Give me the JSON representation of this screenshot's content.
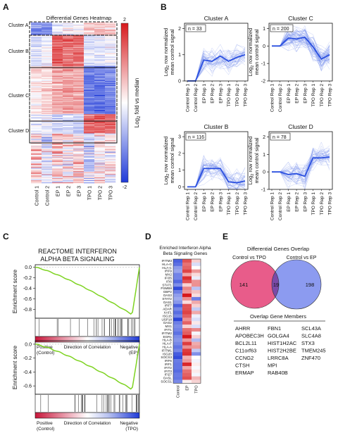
{
  "panels": {
    "A": "A",
    "B": "B",
    "C": "C",
    "D": "D",
    "E": "E"
  },
  "panel_a": {
    "title": "Differential Genes Heatmap",
    "clusters": [
      "Cluster A",
      "Cluster B",
      "Cluster C",
      "Cluster D"
    ],
    "samples": [
      "Control 1",
      "Control 2",
      "EP 1",
      "EP 2",
      "EP 3",
      "TPO 1",
      "TPO 2",
      "TPO 3"
    ],
    "colorbar": {
      "label": "Log",
      "label_sub": "2",
      "label_rest": " fold vs median",
      "max": "2",
      "min": "-2"
    }
  },
  "panel_b": {
    "ylabel_pre": "Log",
    "ylabel_sub": "2",
    "ylabel_post": " row normalized",
    "ylabel_line2": "mean control signal",
    "x_labels": [
      "Control Rep 1",
      "Control Rep 2",
      "EP Rep 1",
      "EP Rep 2",
      "EP Rep 3",
      "TPO Rep 1",
      "TPO Rep 2",
      "TPO Rep 3"
    ],
    "subplots": [
      {
        "title": "Cluster A",
        "n": "n = 33",
        "yticks": [
          "0",
          "1",
          "2"
        ],
        "ymin": 0,
        "ymax": 2.2,
        "mean": [
          0.0,
          0.0,
          0.8,
          0.75,
          0.95,
          0.75,
          0.9,
          1.0
        ]
      },
      {
        "title": "Cluster C",
        "n": "n = 200",
        "yticks": [
          "-2",
          "-1",
          "0",
          "1"
        ],
        "ymin": -2,
        "ymax": 1.3,
        "mean": [
          0.0,
          0.0,
          0.45,
          0.4,
          0.5,
          -0.05,
          -0.75,
          -0.5
        ]
      },
      {
        "title": "Cluster B",
        "n": "n = 116",
        "yticks": [
          "0",
          "1",
          "2",
          "3"
        ],
        "ymin": -0.15,
        "ymax": 3.3,
        "mean": [
          0.0,
          0.0,
          1.1,
          1.1,
          1.1,
          0.3,
          0.25,
          0.35
        ]
      },
      {
        "title": "Cluster D",
        "n": "n = 78",
        "yticks": [
          "-1",
          "0",
          "1",
          "2"
        ],
        "ymin": -1,
        "ymax": 2.3,
        "mean": [
          0.0,
          0.0,
          -0.15,
          -0.1,
          -0.25,
          0.8,
          0.8,
          0.85
        ]
      }
    ]
  },
  "panel_c": {
    "title_line1": "REACTOME INTERFERON",
    "title_line2": "ALPHA BETA SIGNALING",
    "ylabel": "Enrichment score",
    "top": {
      "yticks": [
        "0.0",
        "-0.2",
        "-0.4",
        "-0.6",
        "-0.8"
      ],
      "min_es": -0.9,
      "left": "Positive",
      "left_sub": "(Control)",
      "middle": "Direction of Correlation",
      "right": "Negative",
      "right_sub": "(EP)"
    },
    "bottom": {
      "yticks": [
        "0.0",
        "-0.2",
        "-0.4",
        "-0.6"
      ],
      "min_es": -0.65,
      "left": "Positive",
      "left_sub": "(Control)",
      "middle": "Direction of Correlation",
      "right": "Negative",
      "right_sub": "(TPO)"
    }
  },
  "panel_d": {
    "title_line1": "Enriched Interferon Alpha",
    "title_line2": "Beta Signaling Genes",
    "genes": [
      "IFITM3",
      "HLA-G",
      "HLA-C",
      "IRF9",
      "MX2",
      "IFI35",
      "IFI6",
      "STAT1",
      "PSMB8",
      "GBP2",
      "OAS3",
      "STAT2",
      "OAS1",
      "IRF7",
      "ADAR",
      "XAF1",
      "ISG15",
      "USP18",
      "OAS2",
      "MX1",
      "IFIT1",
      "IFITM2",
      "EGR1",
      "HLA-B",
      "HLA-F",
      "HLA-A",
      "IFITM1",
      "ISG20",
      "SOCS3",
      "IRF6",
      "IRF1",
      "IFIT2",
      "IFIT3",
      "IFI27",
      "OASL",
      "SOCS1"
    ],
    "columns": [
      "Control",
      "EP",
      "TPO"
    ]
  },
  "panel_e": {
    "title": "Differential Genes Overlap",
    "left_label": "Control vs TPO",
    "right_label": "Control vs EP",
    "left_only": "141",
    "overlap": "19",
    "right_only": "198",
    "members_title": "Overlap Gene Members",
    "members": [
      [
        "AHRR",
        "APOBEC3H",
        "BCL2L11",
        "C11orf63",
        "CCNG2",
        "CTSH",
        "ERMAP"
      ],
      [
        "FBN1",
        "GOLGA4",
        "HIST1H2AC",
        "HIST2H2BE",
        "LRRC8A",
        "MPI",
        "RAB40B"
      ],
      [
        "SCL43A",
        "SLC4A8",
        "STX3",
        "TMEM245",
        "ZNF470"
      ]
    ]
  },
  "colors": {
    "red": "#d7191c",
    "blue": "#2b50e0",
    "pink": "#e85c8a",
    "venn_blue": "#8c9bf0",
    "overlap": "#7a4aa8",
    "green": "#7ed321"
  }
}
